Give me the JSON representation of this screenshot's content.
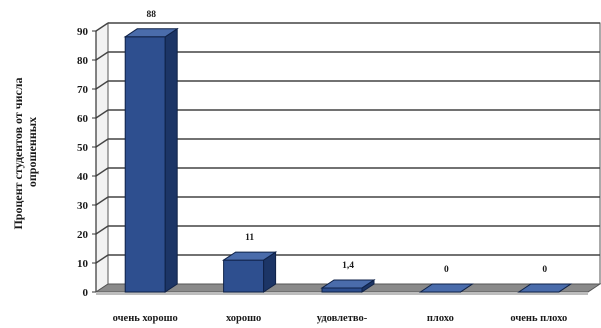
{
  "chart_data": {
    "type": "bar",
    "categories": [
      "очень хорошо",
      "хорошо",
      "удовлетво-",
      "плохо",
      "очень плохо"
    ],
    "values": [
      88,
      11,
      1.4,
      0,
      0
    ],
    "value_labels": [
      "88",
      "11",
      "1,4",
      "0",
      "0"
    ],
    "ylabel_lines": [
      "Процент студентов от числа",
      "опрошенных"
    ],
    "yticks": [
      "0",
      "10",
      "20",
      "30",
      "40",
      "50",
      "60",
      "70",
      "80",
      "90"
    ],
    "ylim": [
      0,
      90
    ],
    "grid": true,
    "three_d": true,
    "bar_color": "#2e4f8f",
    "bar_side_color": "#1c3566",
    "bar_top_color": "#4a6cab",
    "wall_color": "#ffffff",
    "floor_color": "#8a8a8a"
  }
}
